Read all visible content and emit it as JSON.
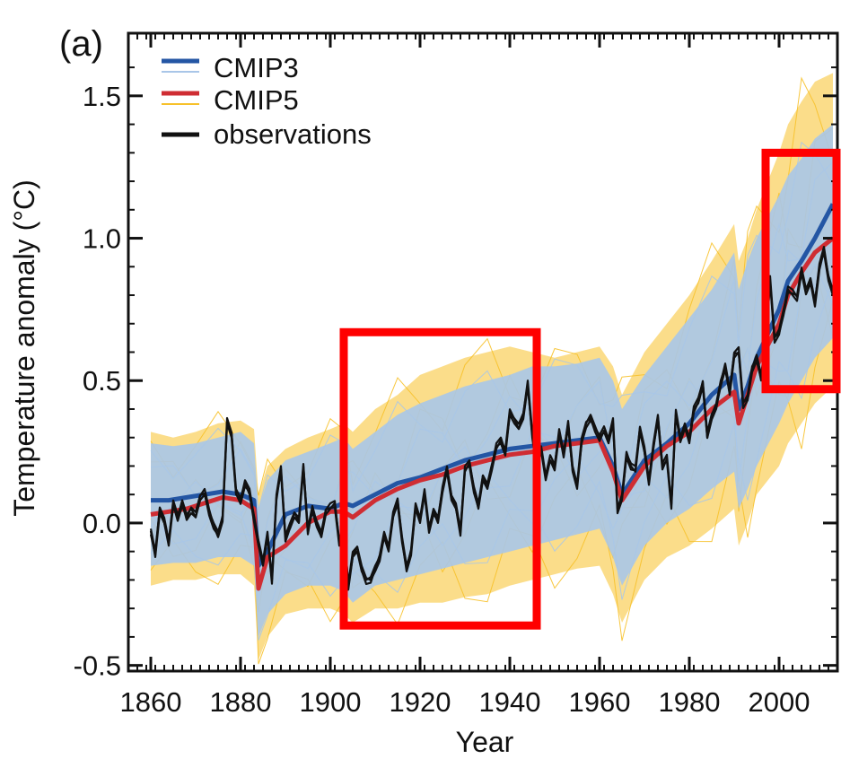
{
  "chart_data": {
    "type": "line",
    "panel_label": "(a)",
    "xlabel": "Year",
    "ylabel": "Temperature anomaly (°C)",
    "xlim": [
      1855,
      2013
    ],
    "ylim": [
      -0.52,
      1.72
    ],
    "x_ticks": [
      1860,
      1880,
      1900,
      1920,
      1940,
      1960,
      1980,
      2000
    ],
    "y_ticks": [
      -0.5,
      0.0,
      0.5,
      1.0,
      1.5
    ],
    "y_tick_labels": [
      "-0.5",
      "0.0",
      "0.5",
      "1.0",
      "1.5"
    ],
    "legend_position": "top-left",
    "legend": [
      {
        "label": "CMIP3",
        "mean_color": "#2456a4",
        "member_color": "#a9c6e8"
      },
      {
        "label": "CMIP5",
        "mean_color": "#cf2d33",
        "member_color": "#f7c12a"
      },
      {
        "label": "observations",
        "mean_color": "#111111"
      }
    ],
    "series": [
      {
        "name": "CMIP3",
        "color": "#2456a4",
        "x": [
          1860,
          1864,
          1868,
          1872,
          1876,
          1880,
          1883,
          1884,
          1886,
          1890,
          1895,
          1900,
          1903,
          1905,
          1910,
          1915,
          1920,
          1925,
          1930,
          1935,
          1940,
          1945,
          1950,
          1955,
          1960,
          1963,
          1965,
          1970,
          1975,
          1980,
          1985,
          1990,
          1991,
          1993,
          1995,
          2000,
          2002,
          2005,
          2008,
          2012
        ],
        "y": [
          0.08,
          0.08,
          0.09,
          0.1,
          0.11,
          0.1,
          0.08,
          -0.15,
          -0.1,
          0.03,
          0.06,
          0.05,
          0.07,
          0.06,
          0.1,
          0.14,
          0.16,
          0.19,
          0.22,
          0.24,
          0.26,
          0.27,
          0.28,
          0.29,
          0.3,
          0.2,
          0.1,
          0.22,
          0.28,
          0.35,
          0.45,
          0.52,
          0.4,
          0.48,
          0.58,
          0.75,
          0.85,
          0.92,
          1.0,
          1.12
        ]
      },
      {
        "name": "CMIP5",
        "color": "#cf2d33",
        "x": [
          1860,
          1864,
          1868,
          1872,
          1876,
          1880,
          1883,
          1884,
          1886,
          1890,
          1895,
          1900,
          1903,
          1905,
          1910,
          1915,
          1920,
          1925,
          1930,
          1935,
          1940,
          1945,
          1950,
          1955,
          1960,
          1963,
          1965,
          1970,
          1975,
          1980,
          1985,
          1990,
          1991,
          1993,
          1995,
          2000,
          2002,
          2005,
          2008,
          2012
        ],
        "y": [
          0.03,
          0.04,
          0.05,
          0.07,
          0.09,
          0.08,
          0.05,
          -0.23,
          -0.12,
          -0.08,
          0.0,
          0.04,
          0.04,
          0.02,
          0.08,
          0.12,
          0.15,
          0.17,
          0.2,
          0.22,
          0.24,
          0.25,
          0.27,
          0.28,
          0.29,
          0.18,
          0.08,
          0.2,
          0.27,
          0.32,
          0.4,
          0.46,
          0.35,
          0.45,
          0.55,
          0.7,
          0.8,
          0.88,
          0.95,
          1.0
        ]
      },
      {
        "name": "observations",
        "color": "#111111",
        "x": [
          1860,
          1861,
          1862,
          1863,
          1864,
          1865,
          1866,
          1867,
          1868,
          1869,
          1870,
          1871,
          1872,
          1873,
          1874,
          1875,
          1876,
          1877,
          1878,
          1879,
          1880,
          1881,
          1882,
          1883,
          1884,
          1885,
          1886,
          1887,
          1888,
          1889,
          1890,
          1891,
          1892,
          1893,
          1894,
          1895,
          1896,
          1897,
          1898,
          1899,
          1900,
          1901,
          1902,
          1903,
          1904,
          1905,
          1906,
          1907,
          1908,
          1909,
          1910,
          1911,
          1912,
          1913,
          1914,
          1915,
          1916,
          1917,
          1918,
          1919,
          1920,
          1921,
          1922,
          1923,
          1924,
          1925,
          1926,
          1927,
          1928,
          1929,
          1930,
          1931,
          1932,
          1933,
          1934,
          1935,
          1936,
          1937,
          1938,
          1939,
          1940,
          1941,
          1942,
          1943,
          1944,
          1945,
          1946,
          1947,
          1948,
          1949,
          1950,
          1951,
          1952,
          1953,
          1954,
          1955,
          1956,
          1957,
          1958,
          1959,
          1960,
          1961,
          1962,
          1963,
          1964,
          1965,
          1966,
          1967,
          1968,
          1969,
          1970,
          1971,
          1972,
          1973,
          1974,
          1975,
          1976,
          1977,
          1978,
          1979,
          1980,
          1981,
          1982,
          1983,
          1984,
          1985,
          1986,
          1987,
          1988,
          1989,
          1990,
          1991,
          1992,
          1993,
          1994,
          1995,
          1996,
          1997,
          1998,
          1999,
          2000,
          2001,
          2002,
          2003,
          2004,
          2005,
          2006,
          2007,
          2008,
          2009,
          2010,
          2011,
          2012
        ],
        "y": [
          -0.02,
          -0.1,
          0.05,
          0.0,
          -0.08,
          0.06,
          0.02,
          0.08,
          0.03,
          0.05,
          0.02,
          0.08,
          0.1,
          0.04,
          0.0,
          -0.03,
          0.02,
          0.35,
          0.3,
          0.1,
          0.08,
          0.15,
          0.12,
          0.02,
          -0.08,
          -0.15,
          -0.05,
          -0.2,
          0.1,
          0.2,
          -0.05,
          -0.02,
          0.02,
          0.0,
          0.2,
          -0.02,
          0.06,
          0.0,
          -0.05,
          0.03,
          0.05,
          0.07,
          -0.06,
          0.0,
          -0.22,
          -0.12,
          -0.1,
          -0.17,
          -0.2,
          -0.19,
          -0.15,
          -0.12,
          -0.05,
          -0.1,
          0.02,
          0.08,
          -0.05,
          -0.15,
          -0.1,
          0.05,
          0.0,
          0.1,
          -0.02,
          0.05,
          0.02,
          0.12,
          0.18,
          0.08,
          0.05,
          -0.03,
          0.2,
          0.22,
          0.12,
          0.05,
          0.15,
          0.12,
          0.2,
          0.28,
          0.3,
          0.25,
          0.38,
          0.35,
          0.33,
          0.38,
          0.5,
          0.32,
          0.2,
          0.25,
          0.15,
          0.22,
          0.2,
          0.33,
          0.25,
          0.35,
          0.18,
          0.12,
          0.28,
          0.35,
          0.38,
          0.34,
          0.3,
          0.32,
          0.28,
          0.35,
          0.05,
          0.1,
          0.25,
          0.2,
          0.18,
          0.32,
          0.25,
          0.15,
          0.28,
          0.38,
          0.2,
          0.22,
          0.05,
          0.38,
          0.3,
          0.35,
          0.3,
          0.4,
          0.42,
          0.48,
          0.3,
          0.38,
          0.42,
          0.5,
          0.55,
          0.45,
          0.58,
          0.6,
          0.42,
          0.45,
          0.55,
          0.58,
          0.5,
          0.62,
          0.85,
          0.65,
          0.68,
          0.75,
          0.82,
          0.8,
          0.78,
          0.88,
          0.82,
          0.86,
          0.78,
          0.9,
          0.95,
          0.85,
          0.8
        ]
      }
    ],
    "ensemble_spread": [
      {
        "name": "CMIP5 members",
        "color": "#f7c12a",
        "x": [
          1860,
          1865,
          1870,
          1875,
          1880,
          1883,
          1884,
          1886,
          1890,
          1895,
          1900,
          1903,
          1905,
          1910,
          1915,
          1920,
          1925,
          1930,
          1935,
          1940,
          1945,
          1950,
          1955,
          1960,
          1963,
          1965,
          1970,
          1975,
          1980,
          1985,
          1990,
          1991,
          1993,
          1995,
          2000,
          2002,
          2005,
          2008,
          2012
        ],
        "upper": [
          0.32,
          0.3,
          0.32,
          0.35,
          0.36,
          0.33,
          0.1,
          0.2,
          0.26,
          0.3,
          0.33,
          0.35,
          0.32,
          0.4,
          0.45,
          0.52,
          0.55,
          0.58,
          0.6,
          0.62,
          0.6,
          0.58,
          0.6,
          0.62,
          0.55,
          0.45,
          0.6,
          0.7,
          0.8,
          0.92,
          1.05,
          0.92,
          1.0,
          1.1,
          1.3,
          1.4,
          1.48,
          1.55,
          1.58
        ],
        "lower": [
          -0.22,
          -0.2,
          -0.2,
          -0.18,
          -0.18,
          -0.22,
          -0.48,
          -0.4,
          -0.32,
          -0.3,
          -0.3,
          -0.32,
          -0.35,
          -0.3,
          -0.3,
          -0.28,
          -0.28,
          -0.26,
          -0.25,
          -0.22,
          -0.2,
          -0.18,
          -0.16,
          -0.15,
          -0.25,
          -0.35,
          -0.2,
          -0.12,
          -0.08,
          -0.02,
          0.05,
          -0.08,
          0.0,
          0.1,
          0.2,
          0.28,
          0.35,
          0.42,
          0.48
        ]
      },
      {
        "name": "CMIP3 members",
        "color": "#a9c6e8",
        "x": [
          1860,
          1865,
          1870,
          1875,
          1880,
          1883,
          1884,
          1886,
          1890,
          1895,
          1900,
          1903,
          1905,
          1910,
          1915,
          1920,
          1925,
          1930,
          1935,
          1940,
          1945,
          1950,
          1955,
          1960,
          1963,
          1965,
          1970,
          1975,
          1980,
          1985,
          1990,
          1991,
          1993,
          1995,
          2000,
          2002,
          2005,
          2008,
          2012
        ],
        "upper": [
          0.28,
          0.27,
          0.28,
          0.3,
          0.32,
          0.28,
          0.05,
          0.15,
          0.22,
          0.25,
          0.28,
          0.3,
          0.26,
          0.32,
          0.38,
          0.42,
          0.45,
          0.48,
          0.5,
          0.52,
          0.55,
          0.55,
          0.56,
          0.58,
          0.5,
          0.4,
          0.52,
          0.62,
          0.72,
          0.82,
          0.95,
          0.82,
          0.92,
          1.0,
          1.15,
          1.22,
          1.28,
          1.35,
          1.4
        ],
        "lower": [
          -0.15,
          -0.14,
          -0.14,
          -0.12,
          -0.12,
          -0.15,
          -0.4,
          -0.32,
          -0.25,
          -0.22,
          -0.22,
          -0.24,
          -0.28,
          -0.22,
          -0.2,
          -0.18,
          -0.16,
          -0.14,
          -0.12,
          -0.1,
          -0.08,
          -0.06,
          -0.04,
          -0.02,
          -0.12,
          -0.22,
          -0.08,
          0.0,
          0.05,
          0.12,
          0.18,
          0.05,
          0.12,
          0.2,
          0.35,
          0.42,
          0.5,
          0.58,
          0.65
        ]
      }
    ],
    "highlight_boxes": [
      {
        "color": "#ff0000",
        "x_range": [
          1903,
          1946
        ],
        "y_range": [
          -0.36,
          0.67
        ]
      },
      {
        "color": "#ff0000",
        "x_range": [
          1997,
          2014
        ],
        "y_range": [
          0.47,
          1.3
        ]
      }
    ],
    "grid": false
  }
}
